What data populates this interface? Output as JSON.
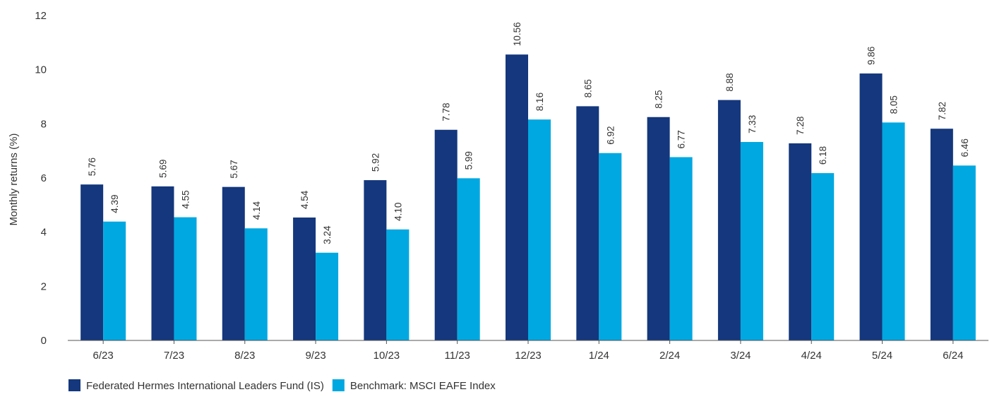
{
  "chart_data": {
    "type": "bar",
    "title": "",
    "xlabel": "",
    "ylabel": "Monthly returns (%)",
    "ylim": [
      0,
      12
    ],
    "yticks": [
      0,
      2,
      4,
      6,
      8,
      10,
      12
    ],
    "grid": false,
    "legend_position": "bottom-left",
    "categories": [
      "6/23",
      "7/23",
      "8/23",
      "9/23",
      "10/23",
      "11/23",
      "12/23",
      "1/24",
      "2/24",
      "3/24",
      "4/24",
      "5/24",
      "6/24"
    ],
    "series": [
      {
        "name": "Federated Hermes International Leaders Fund (IS)",
        "color": "#14377d",
        "values": [
          5.76,
          5.69,
          5.67,
          4.54,
          5.92,
          7.78,
          10.56,
          8.65,
          8.25,
          8.88,
          7.28,
          9.86,
          7.82
        ],
        "labels": [
          "5.76",
          "5.69",
          "5.67",
          "4.54",
          "5.92",
          "7.78",
          "10.56",
          "8.65",
          "8.25",
          "8.88",
          "7.28",
          "9.86",
          "7.82"
        ]
      },
      {
        "name": "Benchmark: MSCI EAFE Index",
        "color": "#00a8e1",
        "values": [
          4.39,
          4.55,
          4.14,
          3.24,
          4.1,
          5.99,
          8.16,
          6.92,
          6.77,
          7.33,
          6.18,
          8.05,
          6.46
        ],
        "labels": [
          "4.39",
          "4.55",
          "4.14",
          "3.24",
          "4.10",
          "5.99",
          "8.16",
          "6.92",
          "6.77",
          "7.33",
          "6.18",
          "8.05",
          "6.46"
        ]
      }
    ]
  }
}
